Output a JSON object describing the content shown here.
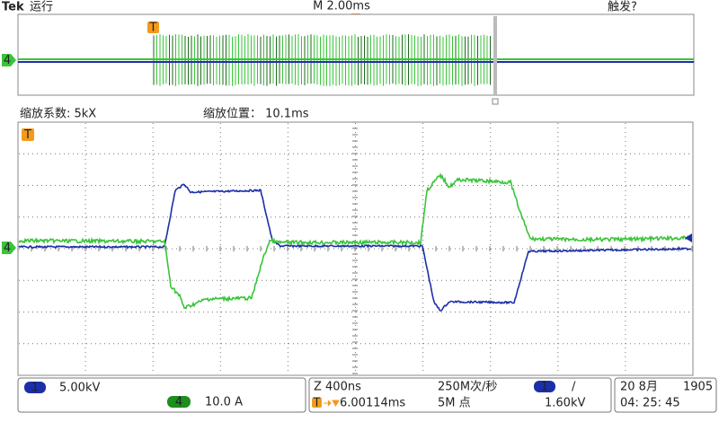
{
  "header": {
    "brand": "Tek",
    "status": "运行",
    "timebase": "M 2.00ms",
    "trigger_status": "触发?"
  },
  "zoom": {
    "factor": "缩放系数: 5kX",
    "position": "缩放位置： 10.1ms"
  },
  "markers": {
    "trigger": "T",
    "channel_4": "4"
  },
  "status_bar": {
    "ch1_label": "1",
    "ch1_scale": "5.00kV",
    "ch4_label": "4",
    "ch4_scale": "10.0 A",
    "zoom_time": "Z 400ns",
    "trigger_position": "6.00114ms",
    "sample_rate": "250M次/秒",
    "record_length": "5M 点",
    "trigger_source": "1",
    "trigger_slope": "/",
    "trigger_level": "1.60kV",
    "date": "20 8月",
    "year": "1905",
    "time": "04: 25: 45"
  }
}
